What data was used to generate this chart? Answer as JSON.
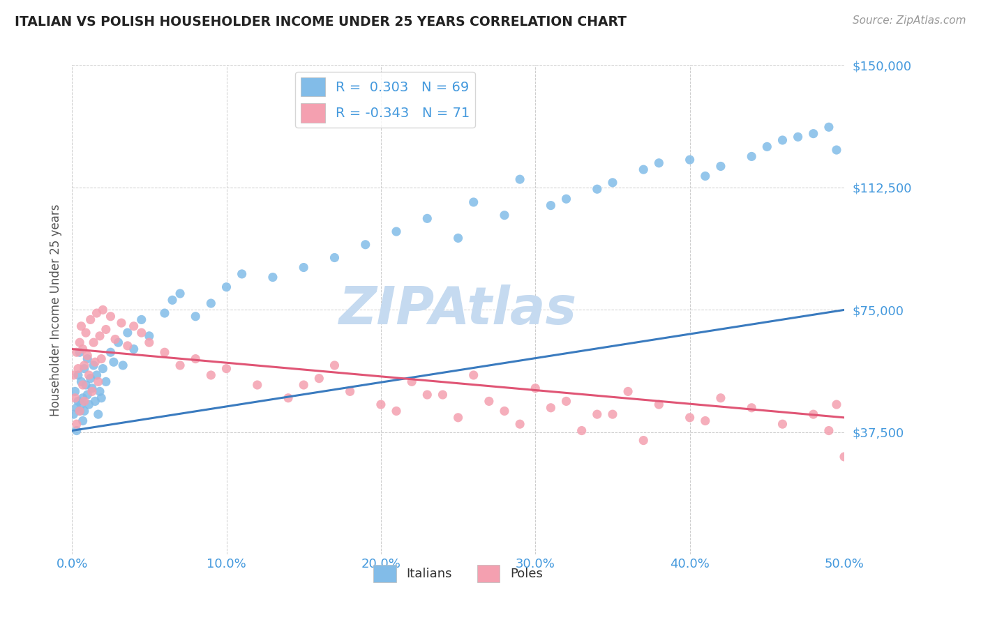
{
  "title": "ITALIAN VS POLISH HOUSEHOLDER INCOME UNDER 25 YEARS CORRELATION CHART",
  "source": "Source: ZipAtlas.com",
  "ylabel": "Householder Income Under 25 years",
  "xlim": [
    0.0,
    0.5
  ],
  "ylim": [
    0,
    150000
  ],
  "xticks": [
    0.0,
    0.1,
    0.2,
    0.3,
    0.4,
    0.5
  ],
  "xticklabels": [
    "0.0%",
    "10.0%",
    "20.0%",
    "30.0%",
    "40.0%",
    "50.0%"
  ],
  "yticks": [
    0,
    37500,
    75000,
    112500,
    150000
  ],
  "yticklabels": [
    "",
    "$37,500",
    "$75,000",
    "$112,500",
    "$150,000"
  ],
  "italian_color": "#82bce8",
  "polish_color": "#f4a0b0",
  "italian_line_color": "#3a7bbf",
  "polish_line_color": "#e05575",
  "watermark": "ZIPAtlas",
  "watermark_color": "#c5daf0",
  "background_color": "#ffffff",
  "grid_color": "#cccccc",
  "title_color": "#222222",
  "axis_label_color": "#555555",
  "tick_color": "#4499dd",
  "legend_label1": "R =  0.303   N = 69",
  "legend_label2": "R = -0.343   N = 71",
  "italian_line_x": [
    0.0,
    0.5
  ],
  "italian_line_y": [
    38000,
    75000
  ],
  "polish_line_x": [
    0.0,
    0.5
  ],
  "polish_line_y": [
    63000,
    42000
  ],
  "italian_x": [
    0.001,
    0.002,
    0.003,
    0.003,
    0.004,
    0.004,
    0.005,
    0.005,
    0.006,
    0.006,
    0.007,
    0.007,
    0.008,
    0.008,
    0.009,
    0.01,
    0.01,
    0.011,
    0.012,
    0.013,
    0.014,
    0.015,
    0.016,
    0.017,
    0.018,
    0.019,
    0.02,
    0.022,
    0.025,
    0.027,
    0.03,
    0.033,
    0.036,
    0.04,
    0.045,
    0.05,
    0.06,
    0.065,
    0.07,
    0.08,
    0.09,
    0.1,
    0.11,
    0.13,
    0.15,
    0.17,
    0.19,
    0.21,
    0.23,
    0.26,
    0.29,
    0.31,
    0.34,
    0.37,
    0.4,
    0.42,
    0.45,
    0.47,
    0.49,
    0.495,
    0.25,
    0.28,
    0.32,
    0.35,
    0.38,
    0.41,
    0.44,
    0.46,
    0.48
  ],
  "italian_y": [
    43000,
    50000,
    45000,
    38000,
    47000,
    55000,
    44000,
    62000,
    46000,
    53000,
    48000,
    41000,
    57000,
    44000,
    52000,
    49000,
    60000,
    46000,
    54000,
    51000,
    58000,
    47000,
    55000,
    43000,
    50000,
    48000,
    57000,
    53000,
    62000,
    59000,
    65000,
    58000,
    68000,
    63000,
    72000,
    67000,
    74000,
    78000,
    80000,
    73000,
    77000,
    82000,
    86000,
    85000,
    88000,
    91000,
    95000,
    99000,
    103000,
    108000,
    115000,
    107000,
    112000,
    118000,
    121000,
    119000,
    125000,
    128000,
    131000,
    124000,
    97000,
    104000,
    109000,
    114000,
    120000,
    116000,
    122000,
    127000,
    129000
  ],
  "polish_x": [
    0.001,
    0.002,
    0.003,
    0.003,
    0.004,
    0.005,
    0.005,
    0.006,
    0.007,
    0.007,
    0.008,
    0.008,
    0.009,
    0.01,
    0.011,
    0.012,
    0.013,
    0.014,
    0.015,
    0.016,
    0.017,
    0.018,
    0.019,
    0.02,
    0.022,
    0.025,
    0.028,
    0.032,
    0.036,
    0.04,
    0.045,
    0.05,
    0.06,
    0.07,
    0.08,
    0.09,
    0.1,
    0.12,
    0.14,
    0.16,
    0.18,
    0.2,
    0.22,
    0.24,
    0.26,
    0.28,
    0.3,
    0.32,
    0.34,
    0.36,
    0.38,
    0.4,
    0.42,
    0.44,
    0.46,
    0.48,
    0.49,
    0.495,
    0.5,
    0.15,
    0.17,
    0.21,
    0.23,
    0.25,
    0.27,
    0.29,
    0.31,
    0.33,
    0.35,
    0.37,
    0.41
  ],
  "polish_y": [
    55000,
    48000,
    62000,
    40000,
    57000,
    65000,
    44000,
    70000,
    52000,
    63000,
    58000,
    47000,
    68000,
    61000,
    55000,
    72000,
    50000,
    65000,
    59000,
    74000,
    53000,
    67000,
    60000,
    75000,
    69000,
    73000,
    66000,
    71000,
    64000,
    70000,
    68000,
    65000,
    62000,
    58000,
    60000,
    55000,
    57000,
    52000,
    48000,
    54000,
    50000,
    46000,
    53000,
    49000,
    55000,
    44000,
    51000,
    47000,
    43000,
    50000,
    46000,
    42000,
    48000,
    45000,
    40000,
    43000,
    38000,
    46000,
    30000,
    52000,
    58000,
    44000,
    49000,
    42000,
    47000,
    40000,
    45000,
    38000,
    43000,
    35000,
    41000
  ]
}
